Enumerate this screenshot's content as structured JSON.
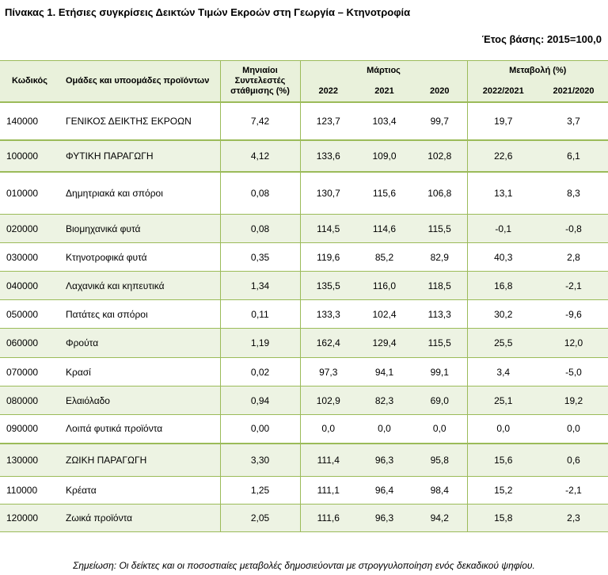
{
  "title": "Πίνακας 1. Ετήσιες συγκρίσεις Δεικτών Τιμών Εκροών στη Γεωργία – Κτηνοτροφία",
  "base_year": "Έτος βάσης: 2015=100,0",
  "headers": {
    "code": "Κωδικός",
    "groups": "Ομάδες και υποομάδες προϊόντων",
    "weights": "Μηνιαίοι Συντελεστές στάθμισης (%)",
    "march": "Μάρτιος",
    "change": "Μεταβολή (%)",
    "y2022": "2022",
    "y2021": "2021",
    "y2020": "2020",
    "c1": "2022/2021",
    "c2": "2021/2020"
  },
  "rows": [
    {
      "code": "140000",
      "label": "ΓΕΝΙΚΟΣ ΔΕΙΚΤΗΣ ΕΚΡΟΩΝ",
      "weight": "7,42",
      "y2022": "123,7",
      "y2021": "103,4",
      "y2020": "99,7",
      "c1": "19,7",
      "c2": "3,7"
    },
    {
      "code": "100000",
      "label": "ΦΥΤΙΚΗ ΠΑΡΑΓΩΓΗ",
      "weight": "4,12",
      "y2022": "133,6",
      "y2021": "109,0",
      "y2020": "102,8",
      "c1": "22,6",
      "c2": "6,1"
    },
    {
      "code": "010000",
      "label": "Δημητριακά και σπόροι",
      "weight": "0,08",
      "y2022": "130,7",
      "y2021": "115,6",
      "y2020": "106,8",
      "c1": "13,1",
      "c2": "8,3"
    },
    {
      "code": "020000",
      "label": "Βιομηχανικά φυτά",
      "weight": "0,08",
      "y2022": "114,5",
      "y2021": "114,6",
      "y2020": "115,5",
      "c1": "-0,1",
      "c2": "-0,8"
    },
    {
      "code": "030000",
      "label": "Κτηνοτροφικά φυτά",
      "weight": "0,35",
      "y2022": "119,6",
      "y2021": "85,2",
      "y2020": "82,9",
      "c1": "40,3",
      "c2": "2,8"
    },
    {
      "code": "040000",
      "label": "Λαχανικά και κηπευτικά",
      "weight": "1,34",
      "y2022": "135,5",
      "y2021": "116,0",
      "y2020": "118,5",
      "c1": "16,8",
      "c2": "-2,1"
    },
    {
      "code": "050000",
      "label": "Πατάτες και σπόροι",
      "weight": "0,11",
      "y2022": "133,3",
      "y2021": "102,4",
      "y2020": "113,3",
      "c1": "30,2",
      "c2": "-9,6"
    },
    {
      "code": "060000",
      "label": "Φρούτα",
      "weight": "1,19",
      "y2022": "162,4",
      "y2021": "129,4",
      "y2020": "115,5",
      "c1": "25,5",
      "c2": "12,0"
    },
    {
      "code": "070000",
      "label": "Κρασί",
      "weight": "0,02",
      "y2022": "97,3",
      "y2021": "94,1",
      "y2020": "99,1",
      "c1": "3,4",
      "c2": "-5,0"
    },
    {
      "code": "080000",
      "label": "Ελαιόλαδο",
      "weight": "0,94",
      "y2022": "102,9",
      "y2021": "82,3",
      "y2020": "69,0",
      "c1": "25,1",
      "c2": "19,2"
    },
    {
      "code": "090000",
      "label": "Λοιπά φυτικά προϊόντα",
      "weight": "0,00",
      "y2022": "0,0",
      "y2021": "0,0",
      "y2020": "0,0",
      "c1": "0,0",
      "c2": "0,0"
    },
    {
      "code": "130000",
      "label": "ΖΩΙΚΗ ΠΑΡΑΓΩΓΗ",
      "weight": "3,30",
      "y2022": "111,4",
      "y2021": "96,3",
      "y2020": "95,8",
      "c1": "15,6",
      "c2": "0,6"
    },
    {
      "code": "110000",
      "label": "Κρέατα",
      "weight": "1,25",
      "y2022": "111,1",
      "y2021": "96,4",
      "y2020": "98,4",
      "c1": "15,2",
      "c2": "-2,1"
    },
    {
      "code": "120000",
      "label": "Ζωικά προϊόντα",
      "weight": "2,05",
      "y2022": "111,6",
      "y2021": "96,3",
      "y2020": "94,2",
      "c1": "15,8",
      "c2": "2,3"
    }
  ],
  "note": "Σημείωση: Οι δείκτες και οι ποσοστιαίες μεταβολές δημοσιεύονται με στρογγυλοποίηση ενός δεκαδικού ψηφίου.",
  "colors": {
    "border": "#9bbb59",
    "header_bg": "#e9f1db",
    "alt_bg": "#edf3e3"
  }
}
